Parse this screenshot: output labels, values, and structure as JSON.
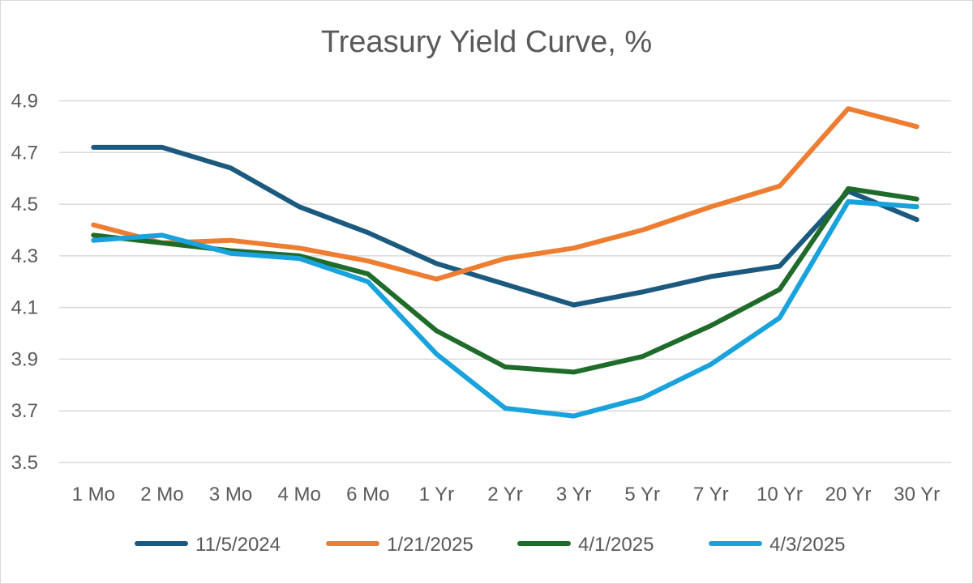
{
  "chart_data": {
    "type": "line",
    "title": "Treasury Yield Curve, %",
    "xlabel": "",
    "ylabel": "",
    "categories": [
      "1 Mo",
      "2 Mo",
      "3 Mo",
      "4 Mo",
      "6 Mo",
      "1 Yr",
      "2 Yr",
      "3 Yr",
      "5 Yr",
      "7 Yr",
      "10 Yr",
      "20 Yr",
      "30 Yr"
    ],
    "y_ticks": [
      "3.5",
      "3.7",
      "3.9",
      "4.1",
      "4.3",
      "4.5",
      "4.7",
      "4.9"
    ],
    "ylim": [
      3.5,
      4.98
    ],
    "grid": true,
    "legend_position": "bottom",
    "series": [
      {
        "name": "11/5/2024",
        "color": "#1b5a7e",
        "values": [
          4.72,
          4.72,
          4.64,
          4.49,
          4.39,
          4.27,
          4.19,
          4.11,
          4.16,
          4.22,
          4.26,
          4.55,
          4.44
        ]
      },
      {
        "name": "1/21/2025",
        "color": "#ed7d31",
        "values": [
          4.42,
          4.35,
          4.36,
          4.33,
          4.28,
          4.21,
          4.29,
          4.33,
          4.4,
          4.49,
          4.57,
          4.87,
          4.8
        ]
      },
      {
        "name": "4/1/2025",
        "color": "#1e6b2a",
        "values": [
          4.38,
          4.35,
          4.32,
          4.3,
          4.23,
          4.01,
          3.87,
          3.85,
          3.91,
          4.03,
          4.17,
          4.56,
          4.52
        ]
      },
      {
        "name": "4/3/2025",
        "color": "#19a2dc",
        "values": [
          4.36,
          4.38,
          4.31,
          4.29,
          4.2,
          3.92,
          3.71,
          3.68,
          3.75,
          3.88,
          4.06,
          4.51,
          4.49
        ]
      }
    ]
  }
}
